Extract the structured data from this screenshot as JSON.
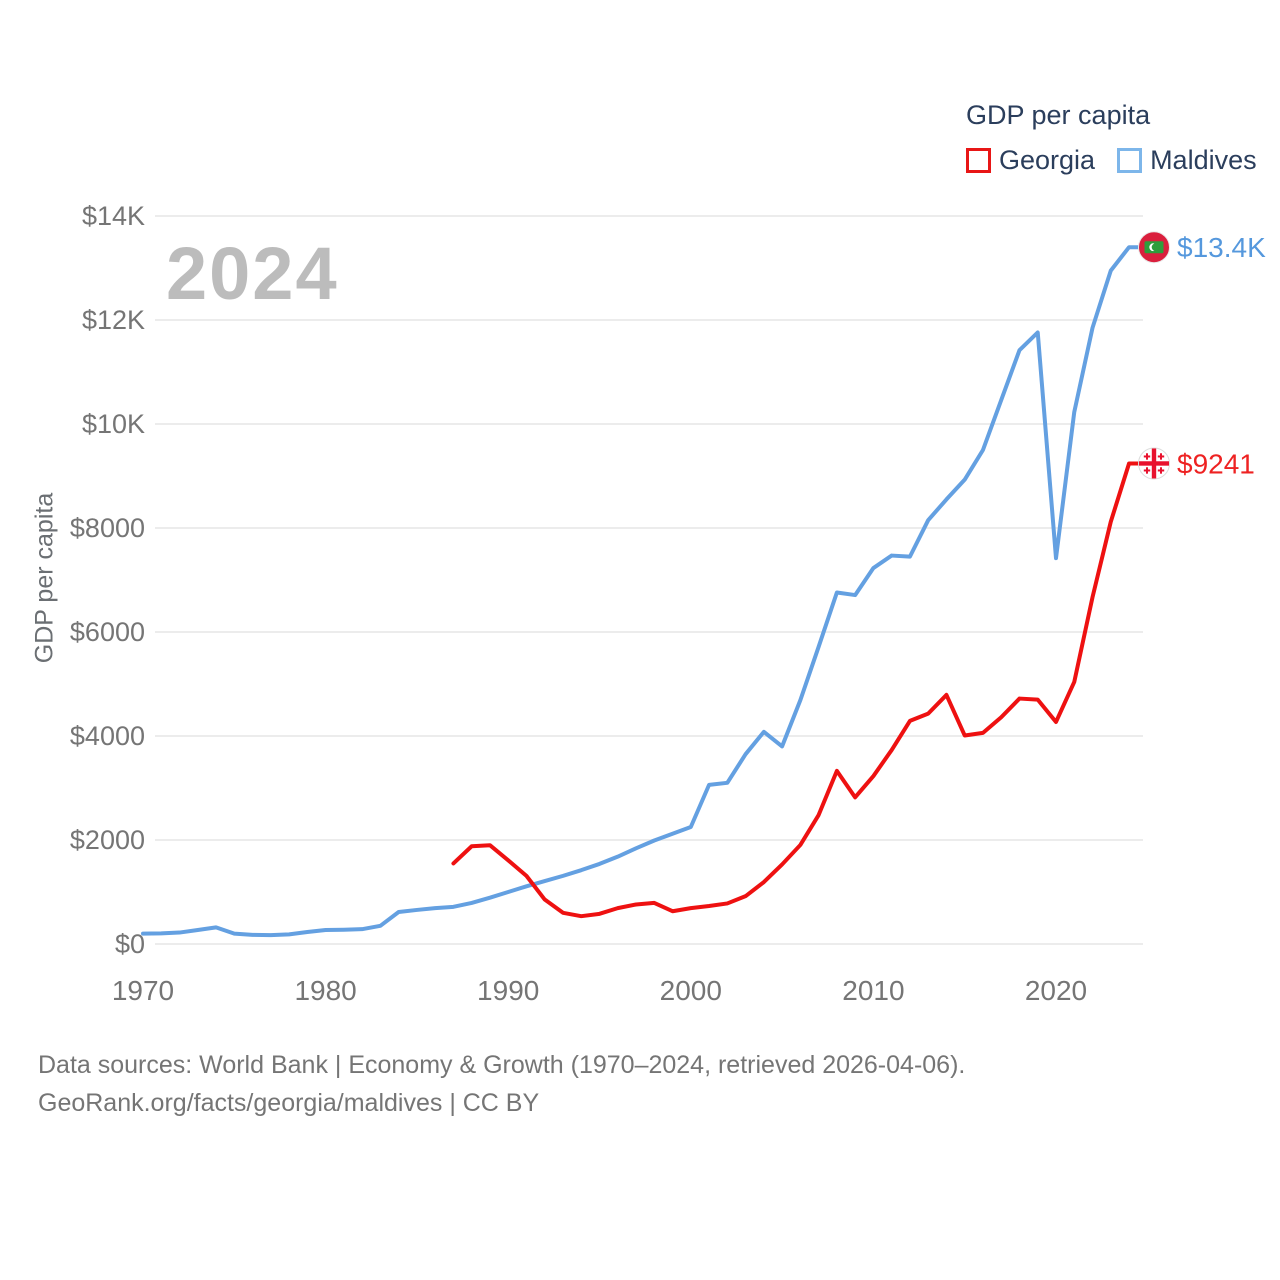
{
  "watermark": "2024",
  "legend": {
    "title": "GDP per capita",
    "items": [
      {
        "label": "Georgia",
        "color": "#e81616"
      },
      {
        "label": "Maldives",
        "color": "#7db6ea"
      }
    ]
  },
  "y_axis": {
    "title": "GDP per capita",
    "ticks": [
      {
        "value": 0,
        "label": "$0"
      },
      {
        "value": 2000,
        "label": "$2000"
      },
      {
        "value": 4000,
        "label": "$4000"
      },
      {
        "value": 6000,
        "label": "$6000"
      },
      {
        "value": 8000,
        "label": "$8000"
      },
      {
        "value": 10000,
        "label": "$10K"
      },
      {
        "value": 12000,
        "label": "$12K"
      },
      {
        "value": 14000,
        "label": "$14K"
      }
    ]
  },
  "x_axis": {
    "ticks": [
      {
        "value": 1970,
        "label": "1970"
      },
      {
        "value": 1980,
        "label": "1980"
      },
      {
        "value": 1990,
        "label": "1990"
      },
      {
        "value": 2000,
        "label": "2000"
      },
      {
        "value": 2010,
        "label": "2010"
      },
      {
        "value": 2020,
        "label": "2020"
      }
    ]
  },
  "footer": {
    "line1": "Data sources: World Bank | Economy & Growth (1970–2024, retrieved 2026-04-06).",
    "line2": "GeoRank.org/facts/georgia/maldives | CC BY"
  },
  "chart_data": {
    "type": "line",
    "title": "GDP per capita",
    "xlabel": "",
    "ylabel": "GDP per capita",
    "x_range": [
      1970,
      2024
    ],
    "ylim": [
      0,
      14500
    ],
    "grid": "horizontal",
    "legend_position": "top-right",
    "series": [
      {
        "name": "Maldives",
        "color": "#64a0e1",
        "end_label": "$13.4K",
        "end_label_color": "#5598dd",
        "flag": "maldives",
        "x": [
          1970,
          1971,
          1972,
          1973,
          1974,
          1975,
          1976,
          1977,
          1978,
          1979,
          1980,
          1981,
          1982,
          1983,
          1984,
          1985,
          1986,
          1987,
          1988,
          1989,
          1990,
          1991,
          1992,
          1993,
          1994,
          1995,
          1996,
          1997,
          1998,
          1999,
          2000,
          2001,
          2002,
          2003,
          2004,
          2005,
          2006,
          2007,
          2008,
          2009,
          2010,
          2011,
          2012,
          2013,
          2014,
          2015,
          2016,
          2017,
          2018,
          2019,
          2020,
          2021,
          2022,
          2023,
          2024
        ],
        "values": [
          200,
          205,
          220,
          270,
          320,
          200,
          175,
          170,
          185,
          230,
          270,
          275,
          285,
          350,
          615,
          655,
          690,
          715,
          790,
          890,
          1000,
          1110,
          1210,
          1310,
          1420,
          1540,
          1680,
          1840,
          1990,
          2120,
          2250,
          3060,
          3100,
          3650,
          4080,
          3800,
          4690,
          5715,
          6760,
          6710,
          7230,
          7470,
          7450,
          8150,
          8550,
          8930,
          9500,
          10460,
          11420,
          11760,
          7420,
          10230,
          11850,
          12950,
          13400
        ]
      },
      {
        "name": "Georgia",
        "color": "#ee1111",
        "end_label": "$9241",
        "end_label_color": "#ee2222",
        "flag": "georgia",
        "x": [
          1987,
          1988,
          1989,
          1990,
          1991,
          1992,
          1993,
          1994,
          1995,
          1996,
          1997,
          1998,
          1999,
          2000,
          2001,
          2002,
          2003,
          2004,
          2005,
          2006,
          2007,
          2008,
          2009,
          2010,
          2011,
          2012,
          2013,
          2014,
          2015,
          2016,
          2017,
          2018,
          2019,
          2020,
          2021,
          2022,
          2023,
          2024
        ],
        "values": [
          1550,
          1880,
          1900,
          1610,
          1310,
          855,
          600,
          535,
          580,
          690,
          760,
          790,
          630,
          690,
          730,
          780,
          920,
          1190,
          1530,
          1905,
          2480,
          3330,
          2820,
          3230,
          3730,
          4290,
          4430,
          4790,
          4010,
          4060,
          4360,
          4720,
          4700,
          4270,
          5040,
          6670,
          8120,
          9241
        ]
      }
    ],
    "style": {
      "gridline_color": "#ececec",
      "tick_color": "#757575",
      "watermark_color": "#bcbcbc"
    }
  }
}
